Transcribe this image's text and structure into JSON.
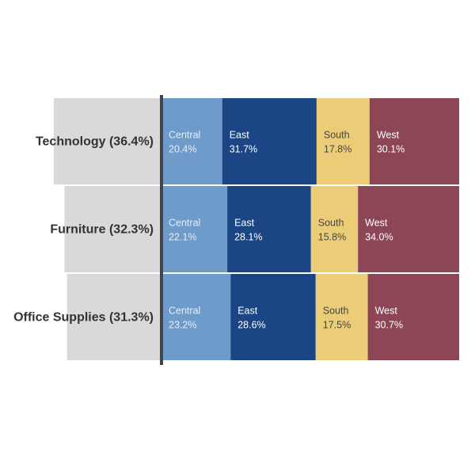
{
  "chart_data": {
    "type": "bar",
    "subtype": "stacked-percent-marimekko",
    "categories": [
      {
        "label": "Technology (36.4%)",
        "share": 36.4
      },
      {
        "label": "Furniture (32.3%)",
        "share": 32.3
      },
      {
        "label": "Office Supplies (31.3%)",
        "share": 31.3
      }
    ],
    "segment_names": [
      "Central",
      "East",
      "South",
      "West"
    ],
    "series": [
      {
        "name": "Central",
        "values": [
          20.4,
          22.1,
          23.2
        ],
        "value_labels": [
          "20.4%",
          "22.1%",
          "23.2%"
        ],
        "color": "#6f9bcb",
        "label_color": "#e6eef8"
      },
      {
        "name": "East",
        "values": [
          31.7,
          28.1,
          28.6
        ],
        "value_labels": [
          "31.7%",
          "28.1%",
          "28.6%"
        ],
        "color": "#1b4585",
        "label_color": "#ffffff"
      },
      {
        "name": "South",
        "values": [
          17.8,
          15.8,
          17.5
        ],
        "value_labels": [
          "17.8%",
          "15.8%",
          "17.5%"
        ],
        "color": "#eccd77",
        "label_color": "#444444"
      },
      {
        "name": "West",
        "values": [
          30.1,
          34.0,
          30.7
        ],
        "value_labels": [
          "30.1%",
          "34.0%",
          "30.7%"
        ],
        "color": "#8d4656",
        "label_color": "#ffffff"
      }
    ],
    "backdrop_color": "#d9d9d9",
    "divider_color": "#444444",
    "legend": "none",
    "grid": false
  }
}
